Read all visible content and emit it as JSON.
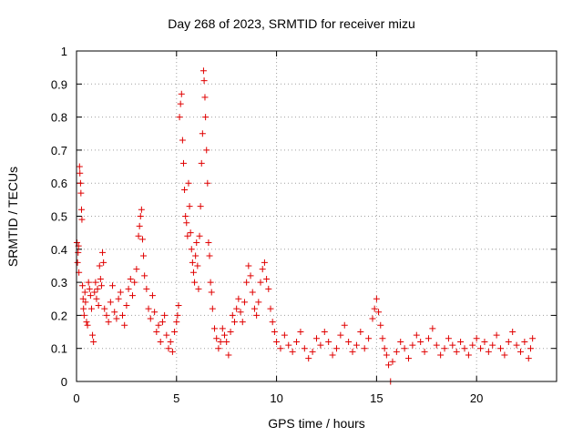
{
  "chart_data": {
    "type": "scatter",
    "title": "Day 268 of 2023, SRMTID for receiver mizu",
    "xlabel": "GPS time / hours",
    "ylabel": "SRMTID / TECUs",
    "xlim": [
      0,
      24
    ],
    "ylim": [
      0,
      1
    ],
    "xticks": [
      "0",
      "5",
      "10",
      "15",
      "20"
    ],
    "yticks": [
      "0",
      "0.1",
      "0.2",
      "0.3",
      "0.4",
      "0.5",
      "0.6",
      "0.7",
      "0.8",
      "0.9",
      "1"
    ],
    "grid": true,
    "marker": "+",
    "color": "#e00000",
    "series": [
      {
        "name": "SRMTID",
        "points": [
          [
            0.02,
            0.42
          ],
          [
            0.05,
            0.36
          ],
          [
            0.08,
            0.39
          ],
          [
            0.1,
            0.41
          ],
          [
            0.12,
            0.33
          ],
          [
            0.15,
            0.65
          ],
          [
            0.17,
            0.63
          ],
          [
            0.2,
            0.6
          ],
          [
            0.22,
            0.57
          ],
          [
            0.25,
            0.52
          ],
          [
            0.27,
            0.49
          ],
          [
            0.3,
            0.29
          ],
          [
            0.33,
            0.25
          ],
          [
            0.35,
            0.22
          ],
          [
            0.38,
            0.2
          ],
          [
            0.42,
            0.27
          ],
          [
            0.45,
            0.24
          ],
          [
            0.5,
            0.18
          ],
          [
            0.55,
            0.17
          ],
          [
            0.6,
            0.3
          ],
          [
            0.65,
            0.28
          ],
          [
            0.7,
            0.26
          ],
          [
            0.75,
            0.22
          ],
          [
            0.8,
            0.14
          ],
          [
            0.85,
            0.12
          ],
          [
            0.9,
            0.27
          ],
          [
            0.95,
            0.3
          ],
          [
            1.0,
            0.25
          ],
          [
            1.05,
            0.28
          ],
          [
            1.1,
            0.23
          ],
          [
            1.15,
            0.35
          ],
          [
            1.2,
            0.31
          ],
          [
            1.25,
            0.29
          ],
          [
            1.3,
            0.39
          ],
          [
            1.35,
            0.36
          ],
          [
            1.4,
            0.22
          ],
          [
            1.5,
            0.2
          ],
          [
            1.6,
            0.18
          ],
          [
            1.7,
            0.24
          ],
          [
            1.8,
            0.29
          ],
          [
            1.9,
            0.21
          ],
          [
            2.0,
            0.19
          ],
          [
            2.1,
            0.25
          ],
          [
            2.2,
            0.27
          ],
          [
            2.3,
            0.2
          ],
          [
            2.4,
            0.17
          ],
          [
            2.5,
            0.23
          ],
          [
            2.6,
            0.28
          ],
          [
            2.7,
            0.31
          ],
          [
            2.8,
            0.26
          ],
          [
            2.9,
            0.3
          ],
          [
            3.0,
            0.34
          ],
          [
            3.1,
            0.44
          ],
          [
            3.15,
            0.47
          ],
          [
            3.2,
            0.5
          ],
          [
            3.25,
            0.52
          ],
          [
            3.3,
            0.43
          ],
          [
            3.35,
            0.38
          ],
          [
            3.4,
            0.32
          ],
          [
            3.5,
            0.28
          ],
          [
            3.6,
            0.22
          ],
          [
            3.7,
            0.19
          ],
          [
            3.8,
            0.26
          ],
          [
            3.9,
            0.21
          ],
          [
            4.0,
            0.15
          ],
          [
            4.1,
            0.17
          ],
          [
            4.2,
            0.12
          ],
          [
            4.3,
            0.18
          ],
          [
            4.4,
            0.2
          ],
          [
            4.5,
            0.14
          ],
          [
            4.6,
            0.1
          ],
          [
            4.7,
            0.12
          ],
          [
            4.8,
            0.09
          ],
          [
            4.9,
            0.15
          ],
          [
            5.0,
            0.18
          ],
          [
            5.05,
            0.2
          ],
          [
            5.1,
            0.23
          ],
          [
            5.15,
            0.8
          ],
          [
            5.2,
            0.84
          ],
          [
            5.25,
            0.87
          ],
          [
            5.3,
            0.73
          ],
          [
            5.35,
            0.66
          ],
          [
            5.4,
            0.58
          ],
          [
            5.45,
            0.5
          ],
          [
            5.5,
            0.48
          ],
          [
            5.55,
            0.44
          ],
          [
            5.6,
            0.6
          ],
          [
            5.65,
            0.53
          ],
          [
            5.7,
            0.45
          ],
          [
            5.75,
            0.4
          ],
          [
            5.8,
            0.36
          ],
          [
            5.85,
            0.33
          ],
          [
            5.9,
            0.3
          ],
          [
            5.95,
            0.38
          ],
          [
            6.0,
            0.42
          ],
          [
            6.05,
            0.35
          ],
          [
            6.1,
            0.28
          ],
          [
            6.15,
            0.44
          ],
          [
            6.2,
            0.53
          ],
          [
            6.25,
            0.66
          ],
          [
            6.3,
            0.75
          ],
          [
            6.35,
            0.94
          ],
          [
            6.38,
            0.91
          ],
          [
            6.42,
            0.86
          ],
          [
            6.45,
            0.8
          ],
          [
            6.5,
            0.7
          ],
          [
            6.55,
            0.6
          ],
          [
            6.6,
            0.42
          ],
          [
            6.65,
            0.38
          ],
          [
            6.7,
            0.3
          ],
          [
            6.75,
            0.27
          ],
          [
            6.8,
            0.22
          ],
          [
            6.9,
            0.16
          ],
          [
            7.0,
            0.13
          ],
          [
            7.1,
            0.1
          ],
          [
            7.2,
            0.12
          ],
          [
            7.3,
            0.16
          ],
          [
            7.4,
            0.14
          ],
          [
            7.5,
            0.12
          ],
          [
            7.6,
            0.08
          ],
          [
            7.7,
            0.15
          ],
          [
            7.8,
            0.2
          ],
          [
            7.9,
            0.18
          ],
          [
            8.0,
            0.22
          ],
          [
            8.1,
            0.25
          ],
          [
            8.2,
            0.21
          ],
          [
            8.3,
            0.18
          ],
          [
            8.4,
            0.24
          ],
          [
            8.5,
            0.3
          ],
          [
            8.6,
            0.35
          ],
          [
            8.7,
            0.32
          ],
          [
            8.8,
            0.27
          ],
          [
            8.9,
            0.22
          ],
          [
            9.0,
            0.2
          ],
          [
            9.1,
            0.24
          ],
          [
            9.2,
            0.3
          ],
          [
            9.3,
            0.34
          ],
          [
            9.4,
            0.36
          ],
          [
            9.5,
            0.31
          ],
          [
            9.6,
            0.28
          ],
          [
            9.7,
            0.22
          ],
          [
            9.8,
            0.18
          ],
          [
            9.9,
            0.15
          ],
          [
            10.0,
            0.12
          ],
          [
            10.2,
            0.1
          ],
          [
            10.4,
            0.14
          ],
          [
            10.6,
            0.11
          ],
          [
            10.8,
            0.09
          ],
          [
            11.0,
            0.12
          ],
          [
            11.2,
            0.15
          ],
          [
            11.4,
            0.1
          ],
          [
            11.6,
            0.07
          ],
          [
            11.8,
            0.09
          ],
          [
            12.0,
            0.13
          ],
          [
            12.2,
            0.11
          ],
          [
            12.4,
            0.15
          ],
          [
            12.6,
            0.12
          ],
          [
            12.8,
            0.08
          ],
          [
            13.0,
            0.1
          ],
          [
            13.2,
            0.14
          ],
          [
            13.4,
            0.17
          ],
          [
            13.6,
            0.12
          ],
          [
            13.8,
            0.09
          ],
          [
            14.0,
            0.11
          ],
          [
            14.2,
            0.15
          ],
          [
            14.4,
            0.1
          ],
          [
            14.6,
            0.13
          ],
          [
            14.8,
            0.19
          ],
          [
            14.9,
            0.22
          ],
          [
            15.0,
            0.25
          ],
          [
            15.1,
            0.21
          ],
          [
            15.2,
            0.17
          ],
          [
            15.3,
            0.13
          ],
          [
            15.4,
            0.1
          ],
          [
            15.5,
            0.08
          ],
          [
            15.6,
            0.05
          ],
          [
            15.7,
            0.0
          ],
          [
            15.8,
            0.06
          ],
          [
            16.0,
            0.09
          ],
          [
            16.2,
            0.12
          ],
          [
            16.4,
            0.1
          ],
          [
            16.6,
            0.07
          ],
          [
            16.8,
            0.11
          ],
          [
            17.0,
            0.14
          ],
          [
            17.2,
            0.12
          ],
          [
            17.4,
            0.09
          ],
          [
            17.6,
            0.13
          ],
          [
            17.8,
            0.16
          ],
          [
            18.0,
            0.11
          ],
          [
            18.2,
            0.08
          ],
          [
            18.4,
            0.1
          ],
          [
            18.6,
            0.13
          ],
          [
            18.8,
            0.11
          ],
          [
            19.0,
            0.09
          ],
          [
            19.2,
            0.12
          ],
          [
            19.4,
            0.1
          ],
          [
            19.6,
            0.08
          ],
          [
            19.8,
            0.11
          ],
          [
            20.0,
            0.13
          ],
          [
            20.2,
            0.1
          ],
          [
            20.4,
            0.12
          ],
          [
            20.6,
            0.09
          ],
          [
            20.8,
            0.11
          ],
          [
            21.0,
            0.14
          ],
          [
            21.2,
            0.1
          ],
          [
            21.4,
            0.08
          ],
          [
            21.6,
            0.12
          ],
          [
            21.8,
            0.15
          ],
          [
            22.0,
            0.11
          ],
          [
            22.2,
            0.09
          ],
          [
            22.4,
            0.12
          ],
          [
            22.6,
            0.07
          ],
          [
            22.7,
            0.1
          ],
          [
            22.8,
            0.13
          ]
        ]
      }
    ]
  }
}
